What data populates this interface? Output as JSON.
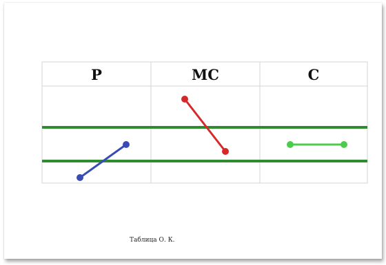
{
  "table": {
    "columns": [
      {
        "label": "P",
        "segment_color": "#3b4bb5"
      },
      {
        "label": "MC",
        "segment_color": "#d62828"
      },
      {
        "label": "C",
        "segment_color": "#4ccc4c"
      }
    ],
    "band_color": "#2e8b2e",
    "grid_color": "#d4d4d4"
  },
  "caption": "Таблица О. К."
}
